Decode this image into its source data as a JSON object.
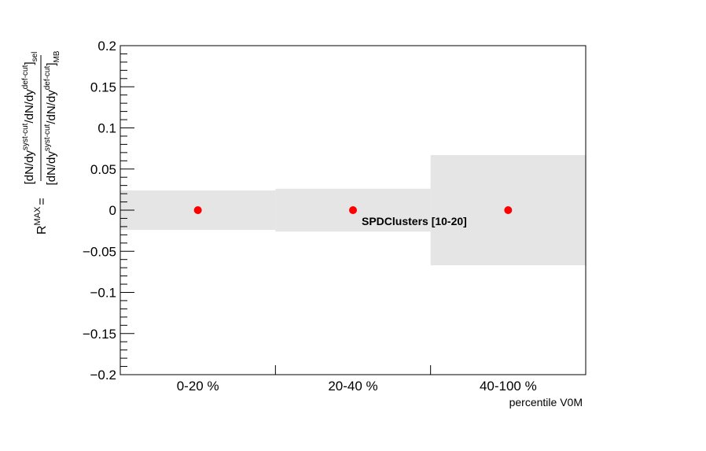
{
  "chart_data": {
    "type": "scatter",
    "categories": [
      "0-20 %",
      "20-40 %",
      "40-100 %"
    ],
    "values": [
      0,
      0,
      0
    ],
    "band_halfwidth": [
      0.024,
      0.026,
      0.067
    ],
    "ylim": [
      -0.2,
      0.2
    ],
    "yticks": [
      "0.2",
      "0.15",
      "0.1",
      "0.05",
      "0",
      "−0.05",
      "−0.1",
      "−0.15",
      "−0.2"
    ],
    "ytick_values": [
      0.2,
      0.15,
      0.1,
      0.05,
      0,
      -0.05,
      -0.1,
      -0.15,
      -0.2
    ],
    "xlabel": "percentile V0M",
    "ylabel": {
      "lhs": "R",
      "lhs_sup": "MAX",
      "equals": "=",
      "num_1": "[dN/dy",
      "num_sup1": "syst-cut",
      "num_2": "/dN/dy",
      "num_sup2": "def-cut",
      "num_3": "]",
      "num_sub": "sel",
      "den_1": "[dN/dy",
      "den_sup1": "syst-cut",
      "den_2": "/dN/dy",
      "den_sup2": "def-cut",
      "den_3": "]",
      "den_sub": "MB"
    },
    "annotation": "SPDClusters [10-20]",
    "colors": {
      "points": "#ff0000",
      "band": "#e5e5e5",
      "axis": "#000000"
    },
    "grid": false
  }
}
